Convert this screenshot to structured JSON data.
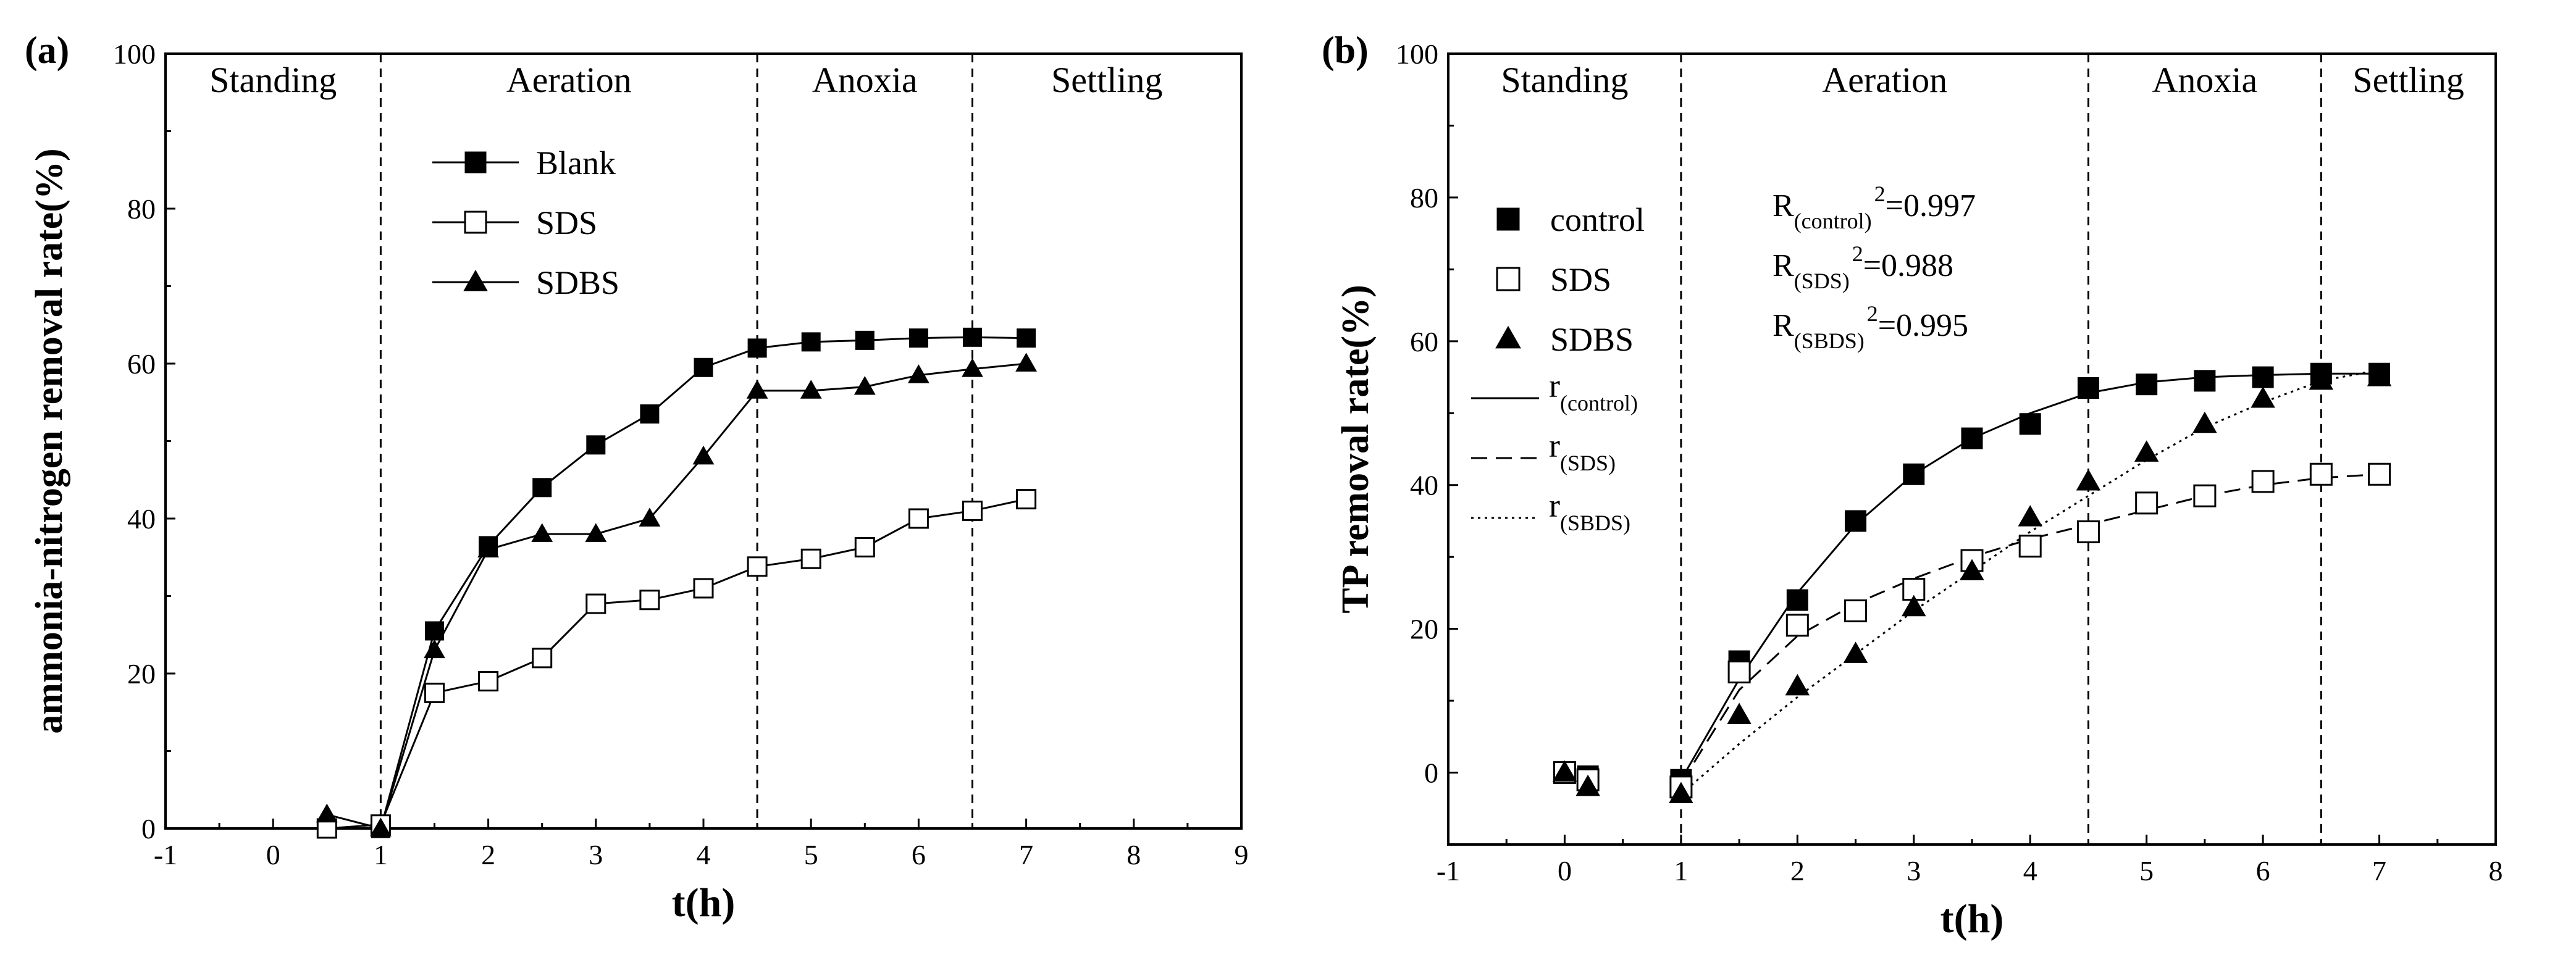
{
  "chart_data": [
    {
      "panel_label": "(a)",
      "type": "line",
      "xlabel": "t(h)",
      "ylabel": "ammonia-nitrogen removal rate(%)",
      "xlim": [
        -1,
        9
      ],
      "ylim": [
        0,
        100
      ],
      "xticks": [
        "-1",
        "0",
        "1",
        "2",
        "3",
        "4",
        "5",
        "6",
        "7",
        "8",
        "9"
      ],
      "yticks": [
        "0",
        "20",
        "40",
        "60",
        "80",
        "100"
      ],
      "phase_lines": [
        1,
        4.5,
        6.5
      ],
      "phases": [
        {
          "label": "Standing",
          "x": 0
        },
        {
          "label": "Aeration",
          "x": 2.75
        },
        {
          "label": "Anoxia",
          "x": 5.5
        },
        {
          "label": "Settling",
          "x": 7.75
        }
      ],
      "series": [
        {
          "name": "Blank",
          "marker": "square-filled",
          "x": [
            0.5,
            1,
            1.5,
            2,
            2.5,
            3,
            3.5,
            4,
            4.5,
            5,
            5.5,
            6,
            6.5,
            7
          ],
          "values": [
            0,
            0,
            25.5,
            36.5,
            44,
            49.5,
            53.5,
            59.5,
            62,
            62.8,
            63,
            63.3,
            63.4,
            63.3
          ]
        },
        {
          "name": "SDS",
          "marker": "square-open",
          "x": [
            0.5,
            1,
            1.5,
            2,
            2.5,
            3,
            3.5,
            4,
            4.5,
            5,
            5.5,
            6,
            6.5,
            7
          ],
          "values": [
            0,
            0.5,
            17.5,
            19,
            22,
            29,
            29.5,
            31,
            33.8,
            34.8,
            36.3,
            40,
            41,
            42.5
          ]
        },
        {
          "name": "SDBS",
          "marker": "triangle-filled",
          "x": [
            0.5,
            1,
            1.5,
            2,
            2.5,
            3,
            3.5,
            4,
            4.5,
            5,
            5.5,
            6,
            6.5,
            7
          ],
          "values": [
            1.8,
            0,
            23,
            36,
            38,
            38,
            40,
            48,
            56.5,
            56.5,
            57,
            58.5,
            59.3,
            60
          ]
        }
      ],
      "legend_position": "upper-middle"
    },
    {
      "panel_label": "(b)",
      "type": "scatter",
      "xlabel": "t(h)",
      "ylabel": "TP removal rate(%)",
      "xlim": [
        -1,
        8
      ],
      "ylim": [
        -10,
        100
      ],
      "xticks": [
        "-1",
        "0",
        "1",
        "2",
        "3",
        "4",
        "5",
        "6",
        "7",
        "8"
      ],
      "yticks": [
        "0",
        "20",
        "40",
        "60",
        "80",
        "100"
      ],
      "phase_lines": [
        1,
        4.5,
        6.5
      ],
      "phases": [
        {
          "label": "Standing",
          "x": 0
        },
        {
          "label": "Aeration",
          "x": 2.75
        },
        {
          "label": "Anoxia",
          "x": 5.5
        },
        {
          "label": "Settling",
          "x": 7.25
        }
      ],
      "series": [
        {
          "name": "control",
          "marker": "square-filled",
          "x": [
            0,
            0.2,
            1,
            1.5,
            2,
            2.5,
            3,
            3.5,
            4,
            4.5,
            5,
            5.5,
            6,
            6.5,
            7
          ],
          "values": [
            0,
            -0.5,
            -1,
            15.5,
            24,
            35,
            41.5,
            46.5,
            48.5,
            53.5,
            54,
            54.5,
            55,
            55.5,
            55.5
          ]
        },
        {
          "name": "SDS",
          "marker": "square-open",
          "x": [
            0,
            0.2,
            1,
            1.5,
            2,
            2.5,
            3,
            3.5,
            4,
            4.5,
            5,
            5.5,
            6,
            6.5,
            7
          ],
          "values": [
            0,
            -1,
            -2,
            14,
            20.5,
            22.5,
            25.5,
            29.5,
            31.5,
            33.5,
            37.5,
            38.5,
            40.5,
            41.5,
            41.5
          ]
        },
        {
          "name": "SDBS",
          "marker": "triangle-filled",
          "x": [
            0,
            0.2,
            1,
            1.5,
            2,
            2.5,
            3,
            3.5,
            4,
            4.5,
            5,
            5.5,
            6,
            6.5,
            7
          ],
          "values": [
            0,
            -2,
            -3,
            8,
            12,
            16.5,
            23,
            28,
            35.5,
            40.5,
            44.5,
            48.5,
            52,
            54.5,
            55
          ]
        }
      ],
      "fits": [
        {
          "name": "r(control)",
          "style": "solid",
          "p": [
            1,
            1.5,
            2,
            2.5,
            3,
            3.5,
            4,
            4.5,
            5,
            5.5,
            6,
            6.5,
            7
          ],
          "v": [
            -1,
            13,
            25,
            34.5,
            41.5,
            46.5,
            50,
            52.8,
            54.3,
            55,
            55.3,
            55.5,
            55.5
          ]
        },
        {
          "name": "r(SDS)",
          "style": "dashed",
          "p": [
            1,
            1.5,
            2,
            2.5,
            3,
            3.5,
            4,
            4.5,
            5,
            5.5,
            6,
            6.5,
            7
          ],
          "v": [
            -1.5,
            11.5,
            19,
            23.5,
            27,
            30,
            32.5,
            34.5,
            36.5,
            38.5,
            40,
            41,
            41.5
          ]
        },
        {
          "name": "r(SBDS)",
          "style": "dotted",
          "p": [
            1,
            1.5,
            2,
            2.5,
            3,
            3.5,
            4,
            4.5,
            5,
            5.5,
            6,
            6.5,
            7
          ],
          "v": [
            -3,
            4,
            10.5,
            16.5,
            22.5,
            28,
            33.5,
            38.5,
            43.5,
            48,
            51.5,
            54.5,
            56
          ]
        }
      ],
      "legend": {
        "items": [
          "control",
          "SDS",
          "SDBS"
        ],
        "fit_items": [
          {
            "main": "r",
            "sub": "(control)"
          },
          {
            "main": "r",
            "sub": "(SDS)"
          },
          {
            "main": "r",
            "sub": "(SBDS)"
          }
        ]
      },
      "annotations": [
        {
          "main": "R",
          "sub": "(control)",
          "sup": "2",
          "value": "=0.997"
        },
        {
          "main": "R",
          "sub": "(SDS)",
          "sup": "2",
          "value": "=0.988"
        },
        {
          "main": "R",
          "sub": "(SBDS)",
          "sup": "2",
          "value": "=0.995"
        }
      ]
    }
  ]
}
